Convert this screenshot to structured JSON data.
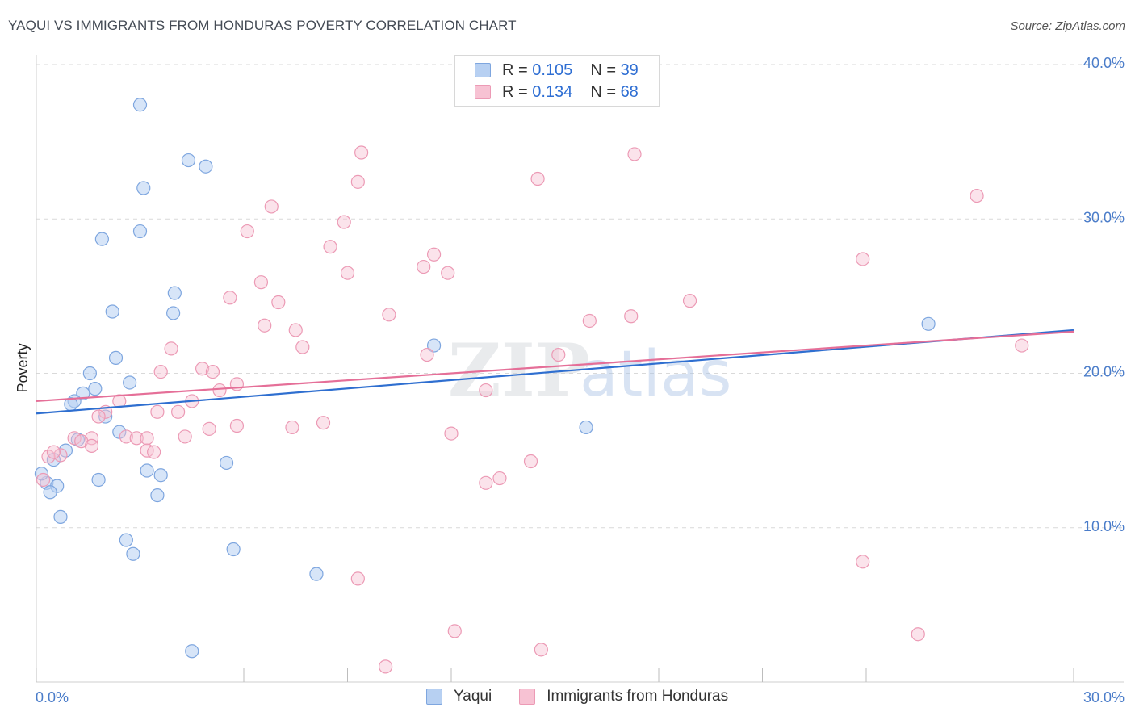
{
  "header": {
    "title": "YAQUI VS IMMIGRANTS FROM HONDURAS POVERTY CORRELATION CHART",
    "source": "Source: ZipAtlas.com"
  },
  "legend": {
    "yaqui": {
      "r_label": "R =",
      "r_value": "0.105",
      "n_label": "N =",
      "n_value": "39"
    },
    "honduras": {
      "r_label": "R =",
      "r_value": "0.134",
      "n_label": "N =",
      "n_value": "68"
    }
  },
  "watermark": {
    "zip": "ZIP",
    "atlas": "atlas"
  },
  "colors": {
    "yaqui_fill": "#b7d0f2",
    "yaqui_stroke": "#7ea6df",
    "yaqui_line": "#2f6fd0",
    "honduras_fill": "#f7c2d3",
    "honduras_stroke": "#ec9ab5",
    "honduras_line": "#e56f98",
    "tick_text": "#4a7cc9",
    "grid": "#d9d9d9"
  },
  "chart_data": {
    "type": "scatter",
    "title": "YAQUI VS IMMIGRANTS FROM HONDURAS POVERTY CORRELATION CHART",
    "xlabel": "",
    "ylabel": "Poverty",
    "xlim": [
      0,
      30
    ],
    "ylim": [
      0,
      40
    ],
    "x_tick_labels": [
      "0.0%",
      "30.0%"
    ],
    "y_ticks": [
      10,
      20,
      30,
      40
    ],
    "y_tick_labels": [
      "10.0%",
      "20.0%",
      "30.0%",
      "40.0%"
    ],
    "grid": true,
    "legend_position": "bottom-center",
    "series": [
      {
        "name": "Yaqui",
        "r": 0.105,
        "n": 39,
        "trend": {
          "x": [
            0,
            30
          ],
          "y": [
            17.4,
            22.8
          ]
        },
        "points": [
          [
            3.0,
            37.4
          ],
          [
            4.4,
            33.8
          ],
          [
            4.9,
            33.4
          ],
          [
            3.1,
            32.0
          ],
          [
            3.0,
            29.2
          ],
          [
            1.9,
            28.7
          ],
          [
            4.0,
            25.2
          ],
          [
            2.2,
            24.0
          ],
          [
            3.96,
            23.9
          ],
          [
            11.5,
            21.8
          ],
          [
            2.3,
            21.0
          ],
          [
            1.55,
            20.0
          ],
          [
            2.7,
            19.4
          ],
          [
            1.7,
            19.0
          ],
          [
            1.35,
            18.7
          ],
          [
            1.1,
            18.2
          ],
          [
            1.0,
            18.0
          ],
          [
            2.0,
            17.2
          ],
          [
            2.4,
            16.2
          ],
          [
            15.9,
            16.5
          ],
          [
            1.2,
            15.7
          ],
          [
            0.85,
            15.0
          ],
          [
            0.5,
            14.4
          ],
          [
            5.5,
            14.2
          ],
          [
            3.2,
            13.7
          ],
          [
            3.6,
            13.4
          ],
          [
            1.8,
            13.1
          ],
          [
            0.3,
            12.9
          ],
          [
            0.6,
            12.7
          ],
          [
            0.4,
            12.3
          ],
          [
            3.5,
            12.1
          ],
          [
            0.7,
            10.7
          ],
          [
            2.6,
            9.2
          ],
          [
            2.8,
            8.3
          ],
          [
            5.7,
            8.6
          ],
          [
            8.1,
            7.0
          ],
          [
            4.5,
            2.0
          ],
          [
            25.8,
            23.2
          ],
          [
            0.15,
            13.5
          ]
        ]
      },
      {
        "name": "Immigrants from Honduras",
        "r": 0.134,
        "n": 68,
        "trend": {
          "x": [
            0,
            30
          ],
          "y": [
            18.2,
            22.7
          ]
        },
        "points": [
          [
            9.4,
            34.3
          ],
          [
            17.3,
            34.2
          ],
          [
            9.3,
            32.4
          ],
          [
            14.5,
            32.6
          ],
          [
            27.2,
            31.5
          ],
          [
            6.8,
            30.8
          ],
          [
            8.9,
            29.8
          ],
          [
            6.1,
            29.2
          ],
          [
            8.5,
            28.2
          ],
          [
            11.5,
            27.7
          ],
          [
            23.9,
            27.4
          ],
          [
            11.2,
            26.9
          ],
          [
            9.0,
            26.5
          ],
          [
            11.9,
            26.5
          ],
          [
            6.5,
            25.9
          ],
          [
            5.6,
            24.9
          ],
          [
            7.0,
            24.6
          ],
          [
            18.9,
            24.7
          ],
          [
            10.2,
            23.8
          ],
          [
            17.2,
            23.7
          ],
          [
            16.0,
            23.4
          ],
          [
            6.6,
            23.1
          ],
          [
            7.5,
            22.8
          ],
          [
            3.9,
            21.6
          ],
          [
            7.7,
            21.7
          ],
          [
            11.3,
            21.2
          ],
          [
            15.1,
            21.2
          ],
          [
            4.8,
            20.3
          ],
          [
            5.1,
            20.1
          ],
          [
            3.6,
            20.1
          ],
          [
            5.8,
            19.3
          ],
          [
            5.3,
            18.9
          ],
          [
            13.0,
            18.9
          ],
          [
            4.5,
            18.2
          ],
          [
            2.4,
            18.2
          ],
          [
            2.0,
            17.5
          ],
          [
            3.5,
            17.5
          ],
          [
            4.1,
            17.5
          ],
          [
            1.8,
            17.2
          ],
          [
            5.8,
            16.6
          ],
          [
            7.4,
            16.5
          ],
          [
            8.3,
            16.8
          ],
          [
            12.0,
            16.1
          ],
          [
            5.0,
            16.4
          ],
          [
            4.3,
            15.9
          ],
          [
            2.6,
            15.9
          ],
          [
            2.9,
            15.8
          ],
          [
            3.2,
            15.8
          ],
          [
            1.6,
            15.8
          ],
          [
            1.1,
            15.8
          ],
          [
            1.3,
            15.6
          ],
          [
            1.6,
            15.3
          ],
          [
            3.2,
            15.0
          ],
          [
            3.4,
            14.9
          ],
          [
            0.7,
            14.7
          ],
          [
            0.35,
            14.6
          ],
          [
            0.5,
            14.9
          ],
          [
            14.3,
            14.3
          ],
          [
            13.4,
            13.2
          ],
          [
            13.0,
            12.9
          ],
          [
            0.2,
            13.1
          ],
          [
            23.9,
            7.8
          ],
          [
            9.3,
            6.7
          ],
          [
            12.1,
            3.3
          ],
          [
            14.6,
            2.1
          ],
          [
            25.5,
            3.1
          ],
          [
            10.1,
            1.0
          ],
          [
            28.5,
            21.8
          ]
        ]
      }
    ]
  },
  "bottom_legend": {
    "yaqui_label": "Yaqui",
    "honduras_label": "Immigrants from Honduras"
  }
}
